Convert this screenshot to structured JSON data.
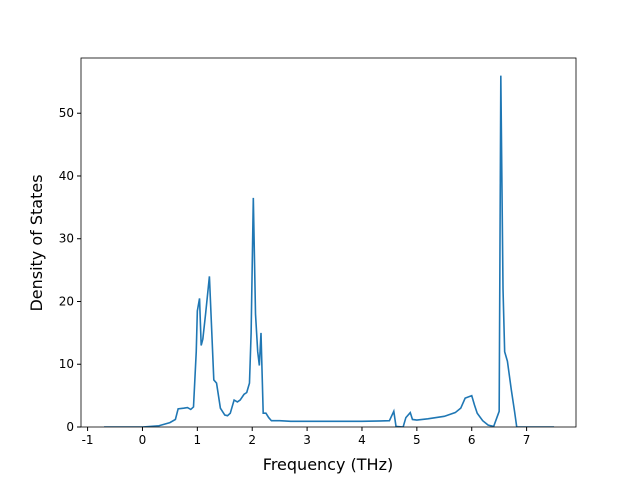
{
  "chart_data": {
    "type": "line",
    "x_label": "Frequency (THz)",
    "y_label": "Density of States",
    "x": [
      -0.7,
      0,
      0.3,
      0.5,
      0.6,
      0.65,
      0.75,
      0.82,
      0.88,
      0.93,
      0.98,
      1.0,
      1.04,
      1.07,
      1.1,
      1.15,
      1.22,
      1.3,
      1.35,
      1.42,
      1.5,
      1.55,
      1.6,
      1.67,
      1.73,
      1.78,
      1.85,
      1.9,
      1.95,
      1.98,
      2.02,
      2.06,
      2.1,
      2.13,
      2.16,
      2.2,
      2.25,
      2.3,
      2.35,
      2.5,
      2.7,
      3.5,
      4.0,
      4.5,
      4.58,
      4.62,
      4.75,
      4.8,
      4.88,
      4.92,
      5.0,
      5.2,
      5.5,
      5.7,
      5.8,
      5.88,
      6.0,
      6.05,
      6.1,
      6.2,
      6.3,
      6.4,
      6.5,
      6.53,
      6.57,
      6.6,
      6.65,
      6.72,
      6.78,
      6.82,
      7.0,
      7.5
    ],
    "series": [
      {
        "color": "#1f77b4",
        "values": [
          0,
          0,
          0.2,
          0.7,
          1.2,
          2.9,
          3.0,
          3.1,
          2.8,
          3.2,
          12,
          18.5,
          20.5,
          13,
          14,
          18,
          24,
          7.5,
          7,
          3,
          1.9,
          1.8,
          2.2,
          4.3,
          4.0,
          4.3,
          5.2,
          5.5,
          7,
          15,
          36.5,
          18,
          12,
          9.8,
          15,
          2.2,
          2.2,
          1.5,
          1.0,
          1.0,
          0.9,
          0.9,
          0.9,
          1.0,
          2.5,
          0.1,
          0,
          1.5,
          2.3,
          1.2,
          1.1,
          1.3,
          1.7,
          2.3,
          3,
          4.6,
          5.0,
          3.5,
          2.2,
          1.0,
          0.3,
          0.1,
          2.5,
          56,
          22,
          12,
          10.5,
          6,
          2.5,
          0,
          0,
          0
        ]
      }
    ],
    "xlim": [
      -1.12,
      7.9
    ],
    "ylim": [
      0,
      58.8
    ],
    "xticks": [
      -1,
      0,
      1,
      2,
      3,
      4,
      5,
      6,
      7
    ],
    "yticks": [
      0,
      10,
      20,
      30,
      40,
      50
    ]
  }
}
